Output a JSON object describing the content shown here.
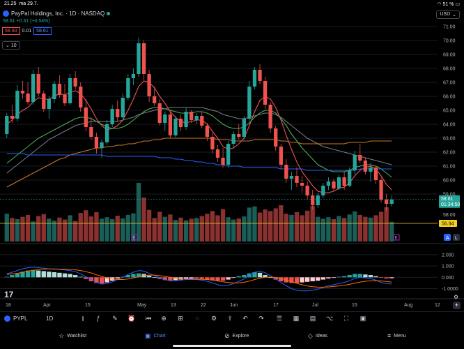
{
  "status_bar": {
    "time": "21.25",
    "date": "ma 29.7.",
    "battery": "51 %"
  },
  "header": {
    "symbol_title": "PayPal Holdings, Inc. · 1D · NASDAQ",
    "price_change": "58.61 +0.31 (+0.54%)",
    "sell_price": "58.60",
    "spread": "0.01",
    "buy_price": "58.61",
    "indicator_count": "10",
    "currency": "USD"
  },
  "price_axis": {
    "ticks": [
      "71.00",
      "70.00",
      "69.00",
      "68.00",
      "67.00",
      "66.00",
      "65.00",
      "64.00",
      "63.00",
      "62.00",
      "61.00",
      "60.00",
      "59.00"
    ],
    "last_price_label": "58.61",
    "countdown": "01:34:50",
    "low_price_label": "58.00",
    "volume_ref_label": "56.94"
  },
  "macd_axis": {
    "ticks": [
      "2.000",
      "1.000",
      "0.000",
      "-1.0000"
    ]
  },
  "time_axis": {
    "ticks": [
      "18",
      "Apr",
      "15",
      "May",
      "13",
      "22",
      "Jun",
      "17",
      "Jul",
      "15",
      "Aug",
      "12"
    ]
  },
  "toolbar": {
    "symbol": "PYPL",
    "interval": "1D",
    "icons": [
      "candles-icon",
      "indicators-icon",
      "draw-icon",
      "alert-icon",
      "replay-icon",
      "layout-icon",
      "ideas-icon",
      "compare-icon",
      "settings-icon",
      "undo-icon",
      "redo-icon",
      "watchlist-icon",
      "calendar-icon",
      "fullscreen-icon",
      "menu-icon"
    ]
  },
  "nav": {
    "items": [
      {
        "label": "Watchlist",
        "icon": "star-icon"
      },
      {
        "label": "Chart",
        "icon": "chart-icon"
      },
      {
        "label": "Explore",
        "icon": "compass-icon"
      },
      {
        "label": "Ideas",
        "icon": "bulb-icon"
      },
      {
        "label": "Menu",
        "icon": "menu-icon"
      }
    ]
  },
  "badges": {
    "auto": "A",
    "log": "L",
    "event_e": "E"
  },
  "colors": {
    "up": "#26a69a",
    "down": "#ef5350",
    "ma_red": "#ef5350",
    "ma_green": "#4caf50",
    "ma_orange": "#c9792a",
    "ma_blue": "#2962ff",
    "ma_gray": "#787b86",
    "accent": "#2962ff"
  },
  "chart_data": {
    "type": "candlestick",
    "ylim": [
      58.0,
      71.0
    ],
    "candles": [
      [
        63.3,
        64.8,
        63.0,
        64.6
      ],
      [
        64.6,
        65.4,
        64.1,
        64.4
      ],
      [
        64.4,
        66.8,
        64.2,
        66.4
      ],
      [
        66.4,
        67.1,
        65.8,
        66.2
      ],
      [
        66.2,
        67.0,
        65.4,
        65.6
      ],
      [
        65.6,
        67.9,
        65.4,
        67.6
      ],
      [
        67.6,
        68.1,
        66.0,
        66.2
      ],
      [
        66.2,
        66.4,
        64.9,
        65.1
      ],
      [
        65.1,
        66.0,
        64.4,
        65.8
      ],
      [
        65.8,
        67.1,
        65.5,
        66.9
      ],
      [
        66.9,
        67.5,
        65.9,
        66.1
      ],
      [
        66.1,
        66.9,
        65.3,
        65.5
      ],
      [
        65.5,
        67.6,
        65.4,
        67.3
      ],
      [
        67.3,
        67.8,
        66.5,
        66.7
      ],
      [
        66.7,
        67.0,
        64.9,
        65.2
      ],
      [
        65.2,
        65.8,
        63.5,
        63.8
      ],
      [
        63.8,
        64.5,
        62.9,
        63.1
      ],
      [
        63.1,
        63.4,
        61.9,
        62.3
      ],
      [
        62.3,
        62.9,
        61.6,
        62.7
      ],
      [
        62.7,
        64.3,
        62.5,
        64.0
      ],
      [
        64.0,
        65.4,
        63.8,
        65.1
      ],
      [
        65.1,
        65.7,
        64.2,
        64.5
      ],
      [
        64.5,
        66.2,
        64.4,
        65.9
      ],
      [
        65.9,
        67.6,
        65.7,
        67.3
      ],
      [
        67.3,
        68.0,
        66.8,
        67.6
      ],
      [
        67.6,
        70.2,
        67.4,
        69.8
      ],
      [
        69.8,
        70.0,
        67.2,
        67.6
      ],
      [
        67.6,
        67.9,
        65.6,
        66.0
      ],
      [
        66.0,
        66.7,
        65.3,
        65.5
      ],
      [
        65.5,
        65.8,
        63.9,
        64.1
      ],
      [
        64.1,
        64.9,
        63.5,
        64.7
      ],
      [
        64.7,
        65.0,
        63.0,
        63.2
      ],
      [
        63.2,
        64.6,
        63.1,
        64.4
      ],
      [
        64.4,
        64.7,
        63.5,
        63.8
      ],
      [
        63.8,
        65.2,
        63.6,
        64.9
      ],
      [
        64.9,
        65.0,
        64.1,
        64.3
      ],
      [
        64.3,
        64.8,
        64.0,
        64.6
      ],
      [
        64.6,
        64.9,
        63.7,
        63.9
      ],
      [
        63.9,
        64.1,
        62.8,
        63.1
      ],
      [
        63.1,
        63.4,
        61.9,
        62.2
      ],
      [
        62.2,
        62.5,
        61.3,
        61.6
      ],
      [
        61.6,
        62.3,
        60.9,
        61.1
      ],
      [
        61.1,
        62.8,
        60.9,
        62.6
      ],
      [
        62.6,
        63.5,
        62.3,
        63.3
      ],
      [
        63.3,
        64.0,
        62.9,
        63.1
      ],
      [
        63.1,
        64.6,
        62.9,
        64.4
      ],
      [
        64.4,
        67.1,
        64.2,
        66.7
      ],
      [
        66.7,
        68.1,
        66.5,
        67.9
      ],
      [
        67.9,
        68.3,
        66.9,
        67.1
      ],
      [
        67.1,
        67.4,
        65.1,
        65.4
      ],
      [
        65.4,
        65.6,
        63.4,
        63.7
      ],
      [
        63.7,
        63.9,
        62.1,
        62.4
      ],
      [
        62.4,
        62.6,
        60.8,
        61.1
      ],
      [
        61.1,
        61.5,
        59.8,
        60.1
      ],
      [
        60.1,
        60.6,
        59.3,
        60.3
      ],
      [
        60.3,
        60.9,
        59.5,
        59.8
      ],
      [
        59.8,
        60.3,
        59.1,
        59.6
      ],
      [
        59.6,
        59.9,
        58.6,
        58.9
      ],
      [
        58.9,
        59.3,
        57.9,
        58.2
      ],
      [
        58.2,
        59.1,
        58.0,
        58.9
      ],
      [
        58.9,
        59.8,
        58.7,
        59.6
      ],
      [
        59.6,
        60.2,
        59.3,
        59.9
      ],
      [
        59.9,
        60.1,
        59.2,
        59.4
      ],
      [
        59.4,
        60.4,
        59.3,
        60.2
      ],
      [
        60.2,
        60.6,
        59.3,
        59.6
      ],
      [
        59.6,
        60.9,
        59.5,
        60.7
      ],
      [
        60.7,
        62.1,
        60.4,
        61.8
      ],
      [
        61.8,
        62.6,
        61.2,
        61.4
      ],
      [
        61.4,
        61.6,
        60.4,
        60.6
      ],
      [
        60.6,
        61.2,
        59.9,
        60.9
      ],
      [
        60.9,
        61.0,
        59.7,
        60.0
      ],
      [
        60.0,
        60.2,
        58.4,
        58.6
      ],
      [
        58.6,
        59.0,
        57.8,
        58.3
      ],
      [
        58.3,
        58.9,
        58.1,
        58.61
      ]
    ],
    "volumes": [
      7.2,
      6.1,
      5.8,
      6.4,
      6.9,
      5.2,
      6.6,
      7.1,
      5.9,
      5.4,
      6.2,
      5.7,
      6.8,
      5.3,
      7.4,
      8.1,
      6.5,
      7.6,
      5.9,
      6.3,
      5.8,
      6.7,
      6.0,
      6.9,
      7.3,
      15.2,
      11.4,
      8.2,
      6.1,
      7.7,
      6.4,
      7.0,
      5.6,
      6.2,
      5.5,
      5.9,
      6.1,
      6.6,
      7.2,
      7.9,
      6.8,
      8.4,
      6.3,
      5.7,
      6.0,
      6.5,
      8.8,
      9.1,
      7.5,
      8.3,
      7.9,
      8.6,
      9.4,
      7.2,
      6.9,
      7.6,
      6.8,
      8.0,
      9.2,
      6.4,
      5.9,
      6.3,
      5.8,
      6.6,
      6.1,
      7.0,
      7.8,
      6.9,
      6.4,
      6.2,
      6.8,
      7.7,
      8.9,
      5.1
    ],
    "ma_series": [
      {
        "color": "ma_red",
        "values": [
          64.0,
          64.3,
          64.7,
          65.0,
          65.2,
          65.6,
          65.9,
          65.8,
          65.8,
          66.0,
          66.2,
          66.1,
          66.3,
          66.4,
          66.2,
          65.7,
          65.1,
          64.4,
          63.9,
          63.6,
          63.7,
          63.9,
          64.3,
          65.0,
          65.8,
          66.7,
          67.1,
          67.0,
          66.6,
          66.0,
          65.5,
          64.9,
          64.5,
          64.2,
          64.1,
          64.2,
          64.3,
          64.3,
          64.0,
          63.5,
          63.0,
          62.4,
          62.2,
          62.3,
          62.6,
          63.0,
          63.9,
          64.9,
          65.7,
          66.0,
          65.8,
          65.2,
          64.3,
          63.2,
          62.2,
          61.3,
          60.6,
          60.1,
          59.6,
          59.2,
          59.1,
          59.1,
          59.2,
          59.4,
          59.5,
          59.8,
          60.3,
          60.7,
          60.9,
          61.0,
          60.8,
          60.3,
          59.7,
          59.3
        ]
      },
      {
        "color": "ma_green",
        "values": [
          61.2,
          61.5,
          61.8,
          62.1,
          62.4,
          62.7,
          63.0,
          63.2,
          63.4,
          63.6,
          63.8,
          64.0,
          64.2,
          64.4,
          64.5,
          64.5,
          64.4,
          64.2,
          64.0,
          63.8,
          63.7,
          63.7,
          63.8,
          64.0,
          64.3,
          64.6,
          64.9,
          65.1,
          65.2,
          65.2,
          65.1,
          65.0,
          64.9,
          64.8,
          64.8,
          64.8,
          64.9,
          64.9,
          64.8,
          64.6,
          64.3,
          64.0,
          63.8,
          63.7,
          63.7,
          63.8,
          64.1,
          64.5,
          64.8,
          65.0,
          65.0,
          64.8,
          64.4,
          63.9,
          63.3,
          62.8,
          62.3,
          61.9,
          61.5,
          61.1,
          60.9,
          60.7,
          60.6,
          60.6,
          60.6,
          60.7,
          60.9,
          61.0,
          61.1,
          61.1,
          61.0,
          60.8,
          60.5,
          60.2
        ]
      },
      {
        "color": "ma_gray",
        "values": [
          60.5,
          60.8,
          61.1,
          61.4,
          61.7,
          62.0,
          62.3,
          62.6,
          62.9,
          63.1,
          63.3,
          63.5,
          63.7,
          63.9,
          64.0,
          64.1,
          64.2,
          64.2,
          64.2,
          64.2,
          64.2,
          64.2,
          64.3,
          64.4,
          64.5,
          64.7,
          64.8,
          64.9,
          65.0,
          65.1,
          65.1,
          65.2,
          65.2,
          65.2,
          65.2,
          65.2,
          65.2,
          65.2,
          65.1,
          65.0,
          64.9,
          64.7,
          64.6,
          64.5,
          64.4,
          64.4,
          64.5,
          64.6,
          64.7,
          64.8,
          64.8,
          64.7,
          64.5,
          64.2,
          63.9,
          63.6,
          63.3,
          63.0,
          62.8,
          62.6,
          62.4,
          62.3,
          62.2,
          62.1,
          62.0,
          61.9,
          61.8,
          61.7,
          61.6,
          61.5,
          61.4,
          61.3,
          61.2,
          61.1
        ]
      },
      {
        "color": "ma_orange",
        "values": [
          59.5,
          59.7,
          59.9,
          60.1,
          60.3,
          60.5,
          60.7,
          60.9,
          61.1,
          61.3,
          61.5,
          61.6,
          61.8,
          61.9,
          62.0,
          62.1,
          62.2,
          62.3,
          62.3,
          62.4,
          62.4,
          62.5,
          62.5,
          62.6,
          62.6,
          62.7,
          62.8,
          62.8,
          62.9,
          62.9,
          63.0,
          63.0,
          63.0,
          63.0,
          63.0,
          63.0,
          63.0,
          63.0,
          63.0,
          63.0,
          62.9,
          62.9,
          62.9,
          62.8,
          62.8,
          62.8,
          62.8,
          62.9,
          62.9,
          62.9,
          62.9,
          62.9,
          62.8,
          62.8,
          62.7,
          62.7,
          62.6,
          62.6,
          62.6,
          62.6,
          62.6,
          62.6,
          62.6,
          62.6,
          62.6,
          62.7,
          62.7,
          62.7,
          62.7,
          62.8,
          62.8,
          62.8,
          62.8,
          62.8
        ]
      },
      {
        "color": "ma_blue",
        "values": [
          61.9,
          61.9,
          61.9,
          61.9,
          61.8,
          61.8,
          61.8,
          61.8,
          61.8,
          61.8,
          61.8,
          61.8,
          61.8,
          61.8,
          61.8,
          61.8,
          61.8,
          61.8,
          61.8,
          61.7,
          61.7,
          61.7,
          61.7,
          61.7,
          61.7,
          61.7,
          61.7,
          61.7,
          61.7,
          61.6,
          61.6,
          61.6,
          61.5,
          61.5,
          61.4,
          61.4,
          61.3,
          61.3,
          61.2,
          61.2,
          61.1,
          61.1,
          61.0,
          61.0,
          61.0,
          60.9,
          60.9,
          60.9,
          60.9,
          60.9,
          60.9,
          60.9,
          60.8,
          60.8,
          60.8,
          60.8,
          60.8,
          60.7,
          60.7,
          60.7,
          60.7,
          60.7,
          60.7,
          60.7,
          60.7,
          60.7,
          60.7,
          60.8,
          60.8,
          60.8,
          60.8,
          60.8,
          60.8,
          60.8
        ]
      }
    ],
    "macd_hist": [
      0.05,
      0.2,
      0.35,
      0.5,
      0.6,
      0.65,
      0.6,
      0.55,
      0.5,
      0.45,
      0.4,
      0.35,
      0.3,
      0.2,
      0.05,
      -0.15,
      -0.35,
      -0.5,
      -0.55,
      -0.45,
      -0.3,
      -0.1,
      0.05,
      0.2,
      0.3,
      0.35,
      0.3,
      0.15,
      0.0,
      -0.15,
      -0.25,
      -0.3,
      -0.25,
      -0.2,
      -0.15,
      -0.1,
      -0.1,
      -0.15,
      -0.2,
      -0.25,
      -0.3,
      -0.3,
      -0.2,
      -0.05,
      0.1,
      0.2,
      0.35,
      0.45,
      0.4,
      0.2,
      0.0,
      -0.2,
      -0.35,
      -0.45,
      -0.5,
      -0.5,
      -0.45,
      -0.4,
      -0.35,
      -0.3,
      -0.2,
      -0.1,
      -0.05,
      0.05,
      0.1,
      0.2,
      0.3,
      0.3,
      0.25,
      0.2,
      0.1,
      -0.05,
      -0.1,
      -0.08
    ],
    "macd_line": [
      0.3,
      0.45,
      0.6,
      0.75,
      0.85,
      0.9,
      0.85,
      0.8,
      0.75,
      0.72,
      0.7,
      0.65,
      0.6,
      0.5,
      0.3,
      0.05,
      -0.2,
      -0.45,
      -0.6,
      -0.55,
      -0.4,
      -0.2,
      0.0,
      0.25,
      0.45,
      0.6,
      0.55,
      0.35,
      0.15,
      -0.05,
      -0.2,
      -0.3,
      -0.3,
      -0.25,
      -0.2,
      -0.2,
      -0.2,
      -0.25,
      -0.35,
      -0.5,
      -0.65,
      -0.75,
      -0.7,
      -0.55,
      -0.35,
      -0.15,
      0.2,
      0.45,
      0.55,
      0.4,
      0.15,
      -0.15,
      -0.45,
      -0.75,
      -1.0,
      -1.15,
      -1.2,
      -1.2,
      -1.15,
      -1.05,
      -0.9,
      -0.75,
      -0.65,
      -0.55,
      -0.45,
      -0.3,
      -0.1,
      0.0,
      -0.05,
      -0.1,
      -0.25,
      -0.45,
      -0.55,
      -0.6
    ],
    "macd_signal": [
      0.25,
      0.3,
      0.35,
      0.45,
      0.55,
      0.62,
      0.68,
      0.72,
      0.74,
      0.74,
      0.73,
      0.72,
      0.7,
      0.66,
      0.6,
      0.5,
      0.38,
      0.22,
      0.08,
      -0.05,
      -0.15,
      -0.2,
      -0.2,
      -0.15,
      -0.05,
      0.05,
      0.15,
      0.2,
      0.2,
      0.15,
      0.08,
      0.0,
      -0.06,
      -0.1,
      -0.13,
      -0.15,
      -0.16,
      -0.18,
      -0.2,
      -0.25,
      -0.32,
      -0.4,
      -0.46,
      -0.5,
      -0.49,
      -0.44,
      -0.34,
      -0.2,
      -0.07,
      0.0,
      0.02,
      -0.02,
      -0.1,
      -0.23,
      -0.38,
      -0.53,
      -0.66,
      -0.76,
      -0.83,
      -0.87,
      -0.87,
      -0.85,
      -0.81,
      -0.76,
      -0.7,
      -0.62,
      -0.52,
      -0.42,
      -0.35,
      -0.3,
      -0.29,
      -0.32,
      -0.37,
      -0.42
    ]
  }
}
